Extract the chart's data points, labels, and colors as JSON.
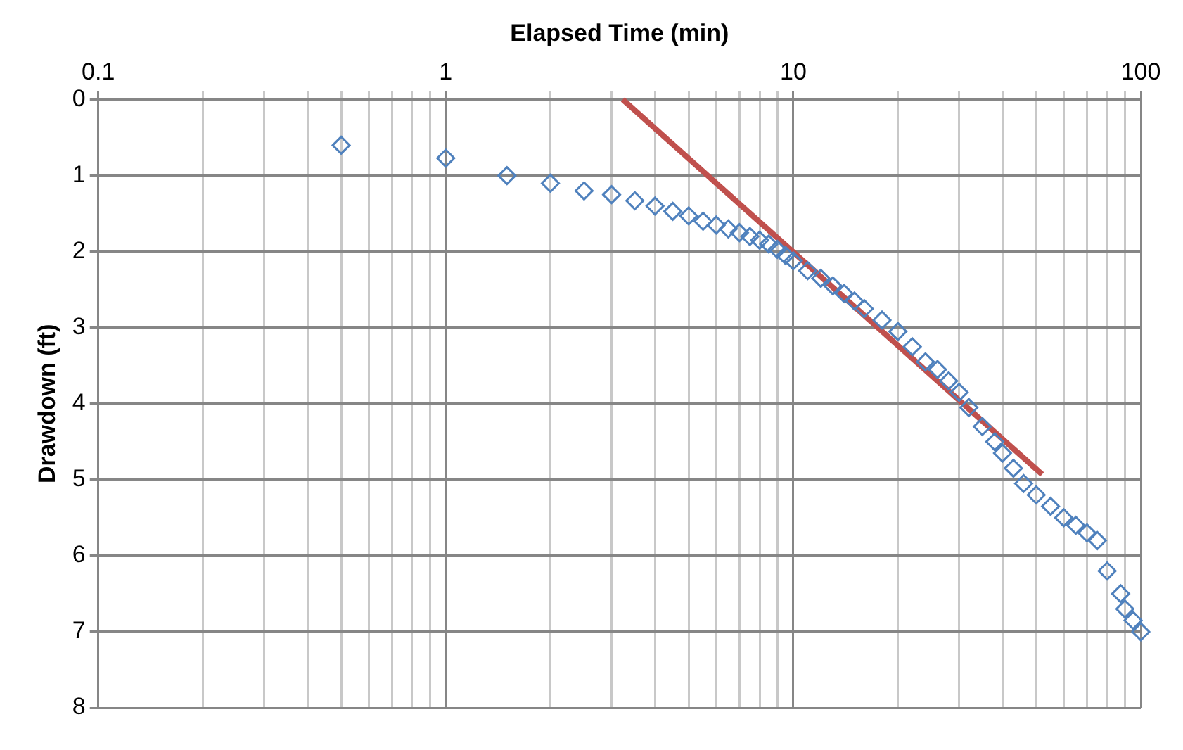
{
  "chart_data": {
    "type": "scatter",
    "xlabel": "Elapsed Time (min)",
    "ylabel": "Drawdown (ft)",
    "log": "x",
    "grid": true,
    "legend": false,
    "xlim": [
      0.1,
      100
    ],
    "xticks": [
      0.1,
      {
        "value": 0.2,
        "label": null
      },
      {
        "value": 0.3,
        "label": null
      },
      {
        "value": 0.4,
        "label": null
      },
      {
        "value": 0.5,
        "label": null
      },
      {
        "value": 0.6,
        "label": null
      },
      {
        "value": 0.7,
        "label": null
      },
      {
        "value": 0.8,
        "label": null
      },
      {
        "value": 0.9,
        "label": null
      },
      1,
      {
        "value": 2,
        "label": null
      },
      {
        "value": 3,
        "label": null
      },
      {
        "value": 4,
        "label": null
      },
      {
        "value": 5,
        "label": null
      },
      {
        "value": 6,
        "label": null
      },
      {
        "value": 7,
        "label": null
      },
      {
        "value": 8,
        "label": null
      },
      {
        "value": 9,
        "label": null
      },
      10,
      {
        "value": 20,
        "label": null
      },
      {
        "value": 30,
        "label": null
      },
      {
        "value": 40,
        "label": null
      },
      {
        "value": 50,
        "label": null
      },
      {
        "value": 60,
        "label": null
      },
      {
        "value": 70,
        "label": null
      },
      {
        "value": 80,
        "label": null
      },
      {
        "value": 90,
        "label": null
      },
      100
    ],
    "ylim": [
      8,
      0
    ],
    "yticks": [
      0,
      1,
      2,
      3,
      4,
      5,
      6,
      7,
      8
    ],
    "series": [
      {
        "marker": "diamond",
        "color": "#4f81bd",
        "x": [
          0.5,
          1,
          1.5,
          2,
          2.5,
          3,
          3.5,
          4,
          4.5,
          5,
          5.5,
          6,
          6.5,
          7,
          7.5,
          8,
          8.5,
          9,
          9.5,
          10,
          11,
          12,
          13,
          14,
          15,
          16,
          18,
          20,
          22,
          24,
          26,
          28,
          30,
          32,
          35,
          38,
          40,
          43,
          46,
          50,
          55,
          60,
          65,
          70,
          75,
          80,
          87.5,
          90,
          95,
          100
        ],
        "values": [
          0.6,
          0.77,
          1.0,
          1.1,
          1.2,
          1.25,
          1.33,
          1.4,
          1.47,
          1.53,
          1.6,
          1.65,
          1.7,
          1.75,
          1.8,
          1.85,
          1.9,
          1.97,
          2.05,
          2.12,
          2.25,
          2.35,
          2.45,
          2.55,
          2.65,
          2.75,
          2.9,
          3.05,
          3.25,
          3.45,
          3.55,
          3.7,
          3.85,
          4.05,
          4.3,
          4.5,
          4.65,
          4.85,
          5.05,
          5.2,
          5.35,
          5.5,
          5.6,
          5.7,
          5.8,
          6.2,
          6.5,
          6.7,
          6.85,
          7.0
        ]
      },
      {
        "type": "line",
        "marker": "none",
        "line_style": "solid",
        "color": "#c0504d",
        "x": [
          3.23,
          52
        ],
        "values": [
          0,
          4.93
        ]
      }
    ]
  }
}
